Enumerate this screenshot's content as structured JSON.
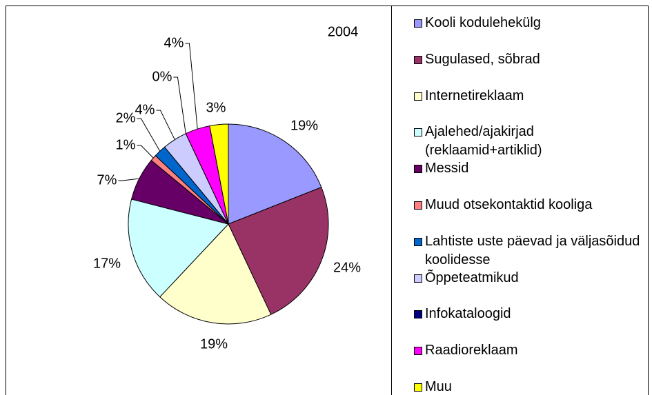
{
  "chart_data": {
    "type": "pie",
    "title": "2004",
    "categories": [
      "Kooli kodulehekülg",
      "Sugulased, sõbrad",
      "Internetireklaam",
      "Ajalehed/ajakirjad (reklaamid+artiklid)",
      "Messid",
      "Muud otsekontaktid kooliga",
      "Lahtiste uste päevad ja väljasõidud koolidesse",
      "Õppeteatmikud",
      "Infokataloogid",
      "Raadioreklaam",
      "Muu"
    ],
    "values": [
      19,
      24,
      19,
      17,
      7,
      1,
      2,
      4,
      0,
      4,
      3
    ],
    "value_labels": [
      "19%",
      "24%",
      "19%",
      "17%",
      "7%",
      "1%",
      "2%",
      "4%",
      "0%",
      "4%",
      "3%"
    ],
    "colors": [
      "#9999ff",
      "#993366",
      "#ffffcc",
      "#ccffff",
      "#660066",
      "#ff8080",
      "#0066cc",
      "#ccccff",
      "#000080",
      "#ff00ff",
      "#ffff00"
    ],
    "legend": "right"
  }
}
